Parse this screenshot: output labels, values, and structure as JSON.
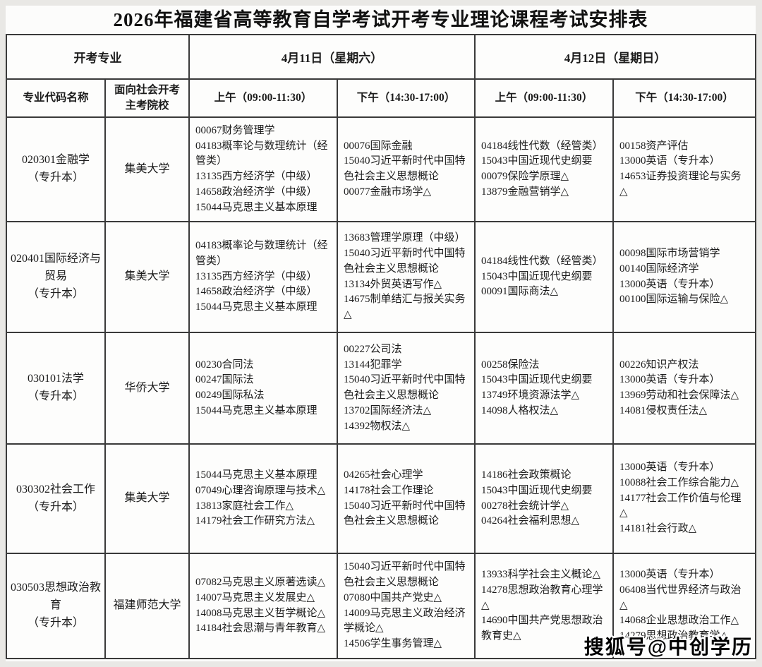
{
  "title": "2026年福建省高等教育自学考试开考专业理论课程考试安排表",
  "header": {
    "open_major": "开考专业",
    "day1": "4月11日（星期六）",
    "day2": "4月12日（星期日）",
    "major_code": "专业代码名称",
    "school": "面向社会开考主考院校",
    "am": "上午（09:00-11:30）",
    "pm": "下午（14:30-17:00）"
  },
  "watermark": "搜狐号@中创学历",
  "rows": [
    {
      "major": "020301金融学",
      "level": "（专升本）",
      "school": "集美大学",
      "d1am": [
        "00067财务管理学",
        "04183概率论与数理统计（经管类）",
        "13135西方经济学（中级）",
        "14658政治经济学（中级）",
        "15044马克思主义基本原理"
      ],
      "d1pm": [
        "00076国际金融",
        "15040习近平新时代中国特色社会主义思想概论",
        "00077金融市场学△"
      ],
      "d2am": [
        "04184线性代数（经管类）",
        "15043中国近现代史纲要",
        "00079保险学原理△",
        "13879金融营销学△"
      ],
      "d2pm": [
        "00158资产评估",
        "13000英语（专升本）",
        "14653证券投资理论与实务△"
      ]
    },
    {
      "major": "020401国际经济与贸易",
      "level": "（专升本）",
      "school": "集美大学",
      "d1am": [
        "04183概率论与数理统计（经管类）",
        "13135西方经济学（中级）",
        "14658政治经济学（中级）",
        "15044马克思主义基本原理"
      ],
      "d1pm": [
        "13683管理学原理（中级）",
        "15040习近平新时代中国特色社会主义思想概论",
        "13134外贸英语写作△",
        "14675制单结汇与报关实务△"
      ],
      "d2am": [
        "04184线性代数（经管类）",
        "15043中国近现代史纲要",
        "00091国际商法△"
      ],
      "d2pm": [
        "00098国际市场营销学",
        "00140国际经济学",
        "13000英语（专升本）",
        "00100国际运输与保险△"
      ]
    },
    {
      "major": "030101法学",
      "level": "（专升本）",
      "school": "华侨大学",
      "d1am": [
        "00230合同法",
        "00247国际法",
        "00249国际私法",
        "15044马克思主义基本原理"
      ],
      "d1pm": [
        "00227公司法",
        "13144犯罪学",
        "15040习近平新时代中国特色社会主义思想概论",
        "13702国际经济法△",
        "14392物权法△"
      ],
      "d2am": [
        "00258保险法",
        "15043中国近现代史纲要",
        "13749环境资源法学△",
        "14098人格权法△"
      ],
      "d2pm": [
        "00226知识产权法",
        "13000英语（专升本）",
        "13969劳动和社会保障法△",
        "14081侵权责任法△"
      ]
    },
    {
      "major": "030302社会工作",
      "level": "（专升本）",
      "school": "集美大学",
      "d1am": [
        "15044马克思主义基本原理",
        "07049心理咨询原理与技术△",
        "13813家庭社会工作△",
        "14179社会工作研究方法△"
      ],
      "d1pm": [
        "04265社会心理学",
        "14178社会工作理论",
        "15040习近平新时代中国特色社会主义思想概论"
      ],
      "d2am": [
        "14186社会政策概论",
        "15043中国近现代史纲要",
        "00278社会统计学△",
        "04264社会福利思想△"
      ],
      "d2pm": [
        "13000英语（专升本）",
        "10088社会工作综合能力△",
        "14177社会工作价值与伦理△",
        "14181社会行政△"
      ]
    },
    {
      "major": "030503思想政治教育",
      "level": "（专升本）",
      "school": "福建师范大学",
      "d1am": [
        "07082马克思主义原著选读△",
        "14007马克思主义发展史△",
        "14008马克思主义哲学概论△",
        "14184社会思潮与青年教育△"
      ],
      "d1pm": [
        "15040习近平新时代中国特色社会主义思想概论",
        "07080中国共产党史△",
        "14009马克思主义政治经济学概论△",
        "14506学生事务管理△"
      ],
      "d2am": [
        "13933科学社会主义概论△",
        "14278思想政治教育心理学△",
        "14690中国共产党思想政治教育史△"
      ],
      "d2pm": [
        "13000英语（专升本）",
        "06408当代世界经济与政治△",
        "14068企业思想政治工作△",
        "14279思想政治教育学△"
      ]
    }
  ]
}
